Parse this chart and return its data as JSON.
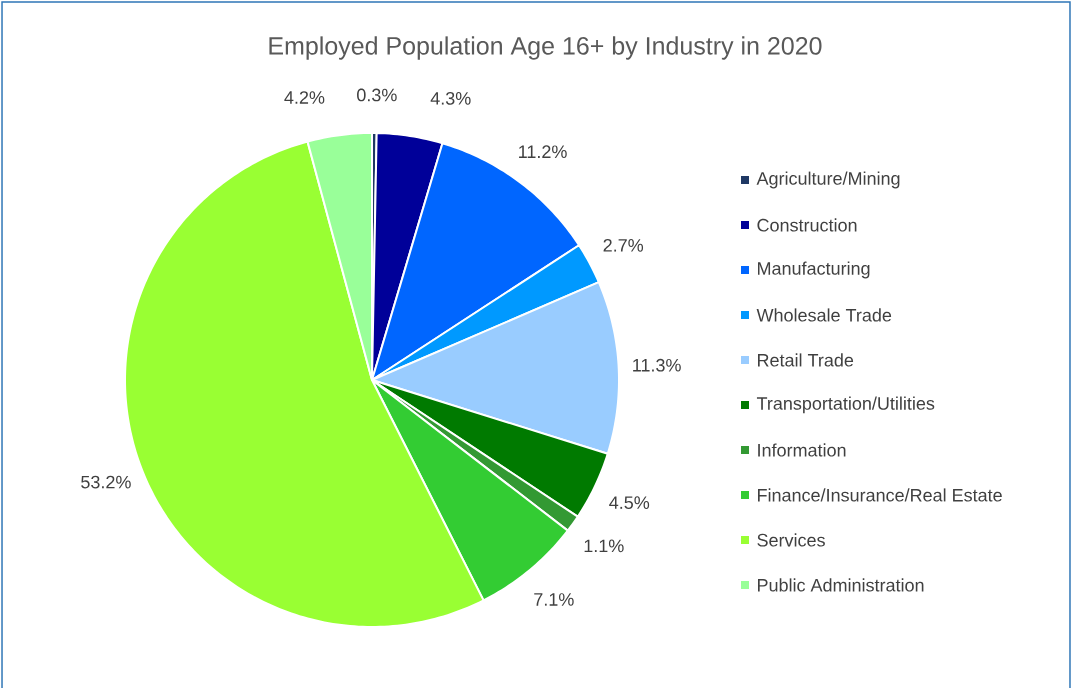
{
  "chart_data": {
    "type": "pie",
    "title": "Employed Population Age 16+ by Industry in 2020",
    "categories": [
      "Agriculture/Mining",
      "Construction",
      "Manufacturing",
      "Wholesale Trade",
      "Retail Trade",
      "Transportation/Utilities",
      "Information",
      "Finance/Insurance/Real Estate",
      "Services",
      "Public Administration"
    ],
    "values": [
      0.3,
      4.3,
      11.2,
      2.7,
      11.3,
      4.5,
      1.1,
      7.1,
      53.2,
      4.2
    ],
    "value_labels": [
      "0.3%",
      "4.3%",
      "11.2%",
      "2.7%",
      "11.3%",
      "4.5%",
      "1.1%",
      "7.1%",
      "53.2%",
      "4.2%"
    ],
    "colors": [
      "#1f3864",
      "#000099",
      "#0066ff",
      "#0099ff",
      "#99ccff",
      "#007a00",
      "#339933",
      "#33cc33",
      "#99ff33",
      "#99ff99"
    ],
    "legend": "right"
  }
}
